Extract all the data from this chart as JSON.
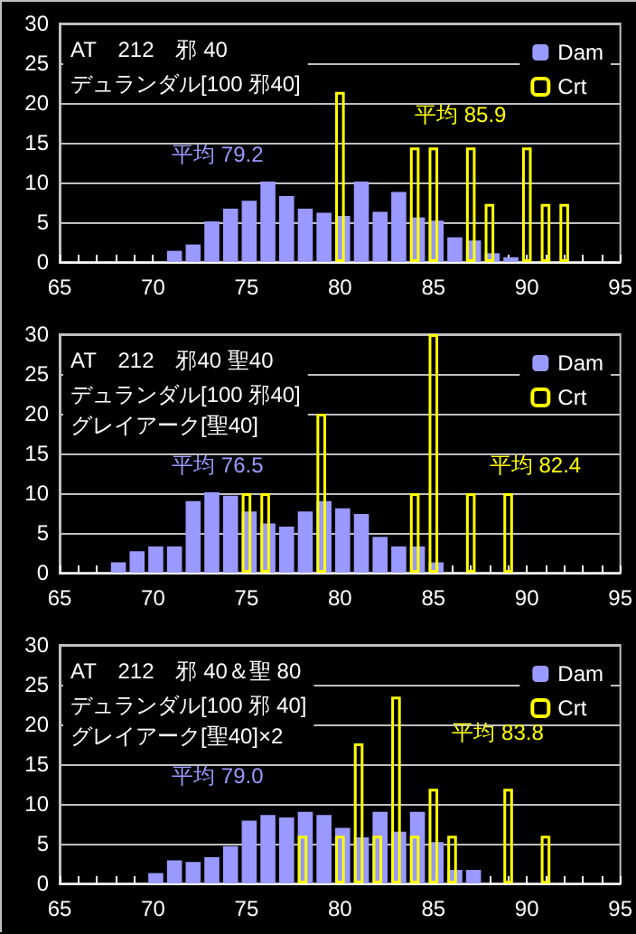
{
  "chart_data": [
    {
      "type": "bar",
      "title": "AT　212　邪 40",
      "subtitle": "デュランダル[100 邪40]",
      "annotations": [
        "平均 79.2",
        "平均 85.9"
      ],
      "series": [
        {
          "name": "Dam",
          "color": "#9999ff",
          "x": [
            71,
            72,
            73,
            74,
            75,
            76,
            77,
            78,
            79,
            80,
            81,
            82,
            83,
            84,
            85,
            86,
            87,
            88,
            89
          ],
          "values": [
            1.4,
            2.2,
            5.1,
            6.7,
            7.7,
            10.1,
            8.3,
            6.7,
            6.2,
            5.8,
            10.1,
            6.3,
            8.8,
            5.6,
            5.2,
            3.1,
            2.7,
            1.1,
            0.6
          ]
        },
        {
          "name": "Crt",
          "color": "#ffff00",
          "x": [
            80,
            84,
            85,
            87,
            88,
            90,
            91,
            92
          ],
          "values": [
            21.4,
            14.4,
            14.4,
            14.4,
            7.3,
            14.4,
            7.3,
            7.3
          ]
        }
      ],
      "xlim": [
        65,
        95
      ],
      "xticks": [
        65,
        {
          "value": 66,
          "label": null
        },
        {
          "value": 67,
          "label": null
        },
        {
          "value": 68,
          "label": null
        },
        {
          "value": 69,
          "label": null
        },
        70,
        {
          "value": 71,
          "label": null
        },
        {
          "value": 72,
          "label": null
        },
        {
          "value": 73,
          "label": null
        },
        {
          "value": 74,
          "label": null
        },
        75,
        {
          "value": 76,
          "label": null
        },
        {
          "value": 77,
          "label": null
        },
        {
          "value": 78,
          "label": null
        },
        {
          "value": 79,
          "label": null
        },
        80,
        {
          "value": 81,
          "label": null
        },
        {
          "value": 82,
          "label": null
        },
        {
          "value": 83,
          "label": null
        },
        {
          "value": 84,
          "label": null
        },
        85,
        {
          "value": 86,
          "label": null
        },
        {
          "value": 87,
          "label": null
        },
        {
          "value": 88,
          "label": null
        },
        {
          "value": 89,
          "label": null
        },
        90,
        {
          "value": 91,
          "label": null
        },
        {
          "value": 92,
          "label": null
        },
        {
          "value": 93,
          "label": null
        },
        {
          "value": 94,
          "label": null
        },
        95
      ],
      "ylim": [
        0,
        30
      ],
      "yticks": [
        0,
        5,
        10,
        15,
        20,
        25,
        30
      ],
      "grid": "y",
      "legend": "top right"
    },
    {
      "type": "bar",
      "title": "AT　212　邪40 聖40",
      "subtitle": "デュランダル[100 邪40]\nグレイアーク[聖40]",
      "annotations": [
        "平均 76.5",
        "平均 82.4"
      ],
      "series": [
        {
          "name": "Dam",
          "color": "#9999ff",
          "x": [
            68,
            69,
            70,
            71,
            72,
            73,
            74,
            75,
            76,
            77,
            78,
            79,
            80,
            81,
            82,
            83,
            84,
            85
          ],
          "values": [
            1.3,
            2.7,
            3.3,
            3.3,
            9.0,
            10.1,
            9.7,
            7.7,
            6.2,
            5.8,
            7.7,
            9.0,
            8.1,
            7.4,
            4.5,
            3.3,
            3.3,
            1.3
          ]
        },
        {
          "name": "Crt",
          "color": "#ffff00",
          "x": [
            75,
            76,
            79,
            84,
            85,
            87,
            89
          ],
          "values": [
            10,
            10,
            20,
            10,
            30,
            10,
            10
          ]
        }
      ],
      "xlim": [
        65,
        95
      ],
      "xticks": [
        65,
        {
          "value": 66,
          "label": null
        },
        {
          "value": 67,
          "label": null
        },
        {
          "value": 68,
          "label": null
        },
        {
          "value": 69,
          "label": null
        },
        70,
        {
          "value": 71,
          "label": null
        },
        {
          "value": 72,
          "label": null
        },
        {
          "value": 73,
          "label": null
        },
        {
          "value": 74,
          "label": null
        },
        75,
        {
          "value": 76,
          "label": null
        },
        {
          "value": 77,
          "label": null
        },
        {
          "value": 78,
          "label": null
        },
        {
          "value": 79,
          "label": null
        },
        80,
        {
          "value": 81,
          "label": null
        },
        {
          "value": 82,
          "label": null
        },
        {
          "value": 83,
          "label": null
        },
        {
          "value": 84,
          "label": null
        },
        85,
        {
          "value": 86,
          "label": null
        },
        {
          "value": 87,
          "label": null
        },
        {
          "value": 88,
          "label": null
        },
        {
          "value": 89,
          "label": null
        },
        90,
        {
          "value": 91,
          "label": null
        },
        {
          "value": 92,
          "label": null
        },
        {
          "value": 93,
          "label": null
        },
        {
          "value": 94,
          "label": null
        },
        95
      ],
      "ylim": [
        0,
        30
      ],
      "yticks": [
        0,
        5,
        10,
        15,
        20,
        25,
        30
      ],
      "grid": "y",
      "legend": "top right"
    },
    {
      "type": "bar",
      "title": "AT　212　邪 40＆聖 80",
      "subtitle": "デュランダル[100 邪 40]\nグレイアーク[聖40]×2",
      "annotations": [
        "平均 79.0",
        "平均 83.8"
      ],
      "series": [
        {
          "name": "Dam",
          "color": "#9999ff",
          "x": [
            70,
            71,
            72,
            73,
            74,
            75,
            76,
            77,
            78,
            79,
            80,
            81,
            82,
            83,
            84,
            85,
            86,
            87
          ],
          "values": [
            1.3,
            2.9,
            2.7,
            3.3,
            4.7,
            7.9,
            8.6,
            8.3,
            9.0,
            8.6,
            7.0,
            5.8,
            9.0,
            6.5,
            9.0,
            5.2,
            1.7,
            1.7
          ]
        },
        {
          "name": "Crt",
          "color": "#ffff00",
          "x": [
            78,
            80,
            81,
            82,
            83,
            84,
            85,
            86,
            89,
            91
          ],
          "values": [
            6,
            6,
            17.6,
            6,
            23.5,
            6,
            11.9,
            6,
            11.9,
            6
          ]
        }
      ],
      "xlim": [
        65,
        95
      ],
      "xticks": [
        65,
        {
          "value": 66,
          "label": null
        },
        {
          "value": 67,
          "label": null
        },
        {
          "value": 68,
          "label": null
        },
        {
          "value": 69,
          "label": null
        },
        70,
        {
          "value": 71,
          "label": null
        },
        {
          "value": 72,
          "label": null
        },
        {
          "value": 73,
          "label": null
        },
        {
          "value": 74,
          "label": null
        },
        75,
        {
          "value": 76,
          "label": null
        },
        {
          "value": 77,
          "label": null
        },
        {
          "value": 78,
          "label": null
        },
        {
          "value": 79,
          "label": null
        },
        80,
        {
          "value": 81,
          "label": null
        },
        {
          "value": 82,
          "label": null
        },
        {
          "value": 83,
          "label": null
        },
        {
          "value": 84,
          "label": null
        },
        85,
        {
          "value": 86,
          "label": null
        },
        {
          "value": 87,
          "label": null
        },
        {
          "value": 88,
          "label": null
        },
        {
          "value": 89,
          "label": null
        },
        90,
        {
          "value": 91,
          "label": null
        },
        {
          "value": 92,
          "label": null
        },
        {
          "value": 93,
          "label": null
        },
        {
          "value": 94,
          "label": null
        },
        95
      ],
      "ylim": [
        0,
        30
      ],
      "yticks": [
        0,
        5,
        10,
        15,
        20,
        25,
        30
      ],
      "grid": "y",
      "legend": "top right"
    }
  ]
}
